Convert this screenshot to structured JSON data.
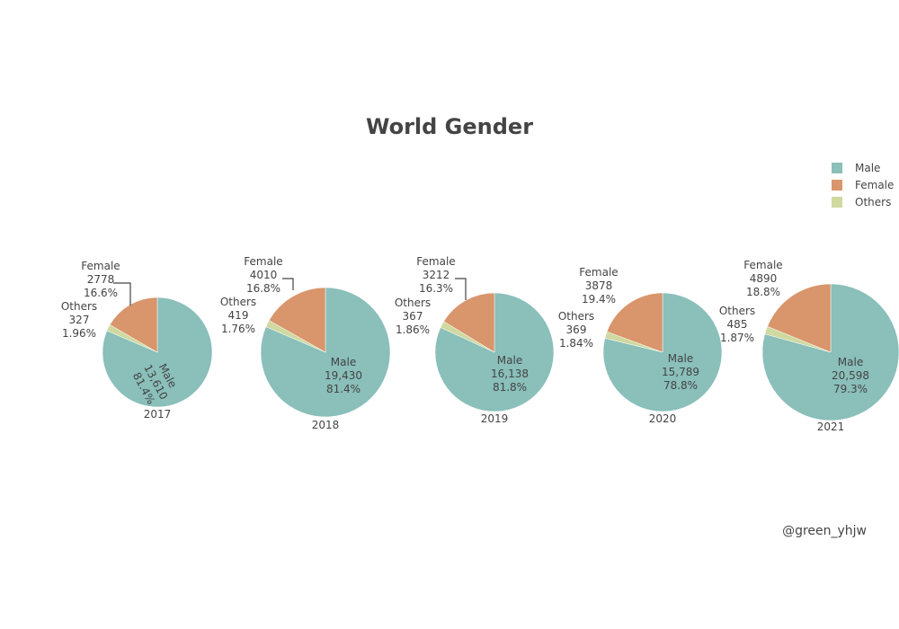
{
  "colors": {
    "Male": "#8abfba",
    "Female": "#d9956b",
    "Others": "#cfd9a0"
  },
  "credit": "@green_yhjw",
  "chart_data": {
    "type": "pie",
    "title": "World Gender",
    "legend": [
      "Male",
      "Female",
      "Others"
    ],
    "legend_position": "top-right",
    "pies": [
      {
        "year": "2017",
        "labels": [
          "Male",
          "Female",
          "Others"
        ],
        "values": [
          13610,
          2778,
          327
        ],
        "value_text": [
          "13,610",
          "2778",
          "327"
        ],
        "percents": [
          "81.4%",
          "16.6%",
          "1.96%"
        ]
      },
      {
        "year": "2018",
        "labels": [
          "Male",
          "Female",
          "Others"
        ],
        "values": [
          19430,
          4010,
          419
        ],
        "value_text": [
          "19,430",
          "4010",
          "419"
        ],
        "percents": [
          "81.4%",
          "16.8%",
          "1.76%"
        ]
      },
      {
        "year": "2019",
        "labels": [
          "Male",
          "Female",
          "Others"
        ],
        "values": [
          16138,
          3212,
          367
        ],
        "value_text": [
          "16,138",
          "3212",
          "367"
        ],
        "percents": [
          "81.8%",
          "16.3%",
          "1.86%"
        ]
      },
      {
        "year": "2020",
        "labels": [
          "Male",
          "Female",
          "Others"
        ],
        "values": [
          15789,
          3878,
          369
        ],
        "value_text": [
          "15,789",
          "3878",
          "369"
        ],
        "percents": [
          "78.8%",
          "19.4%",
          "1.84%"
        ]
      },
      {
        "year": "2021",
        "labels": [
          "Male",
          "Female",
          "Others"
        ],
        "values": [
          20598,
          4890,
          485
        ],
        "value_text": [
          "20,598",
          "4890",
          "485"
        ],
        "percents": [
          "79.3%",
          "18.8%",
          "1.87%"
        ]
      }
    ]
  }
}
